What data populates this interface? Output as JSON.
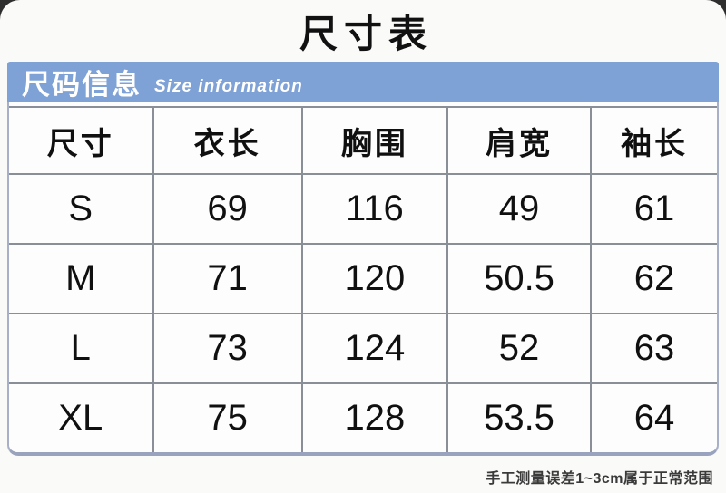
{
  "page": {
    "title": "尺寸表"
  },
  "banner": {
    "title_cn": "尺码信息",
    "title_en": "Size information",
    "bg_color": "#7fa2d6",
    "text_color": "#ffffff"
  },
  "chart_data": {
    "type": "table",
    "title": "尺寸表",
    "section_title": "尺码信息 Size information",
    "columns": [
      "尺寸",
      "衣长",
      "胸围",
      "肩宽",
      "袖长"
    ],
    "rows": [
      [
        "S",
        "69",
        "116",
        "49",
        "61"
      ],
      [
        "M",
        "71",
        "120",
        "50.5",
        "62"
      ],
      [
        "L",
        "73",
        "124",
        "52",
        "63"
      ],
      [
        "XL",
        "75",
        "128",
        "53.5",
        "64"
      ]
    ],
    "unit": "cm",
    "note": "手工测量误差1~3cm属于正常范围"
  },
  "footer": {
    "note": "手工测量误差1~3cm属于正常范围"
  },
  "colors": {
    "banner_blue": "#7fa2d6",
    "grid_line": "#8a8e97",
    "outer_border": "#a8b0c7",
    "card_bg": "#fafaf8",
    "cell_bg": "#fdfdfe",
    "title_text": "#111111"
  }
}
